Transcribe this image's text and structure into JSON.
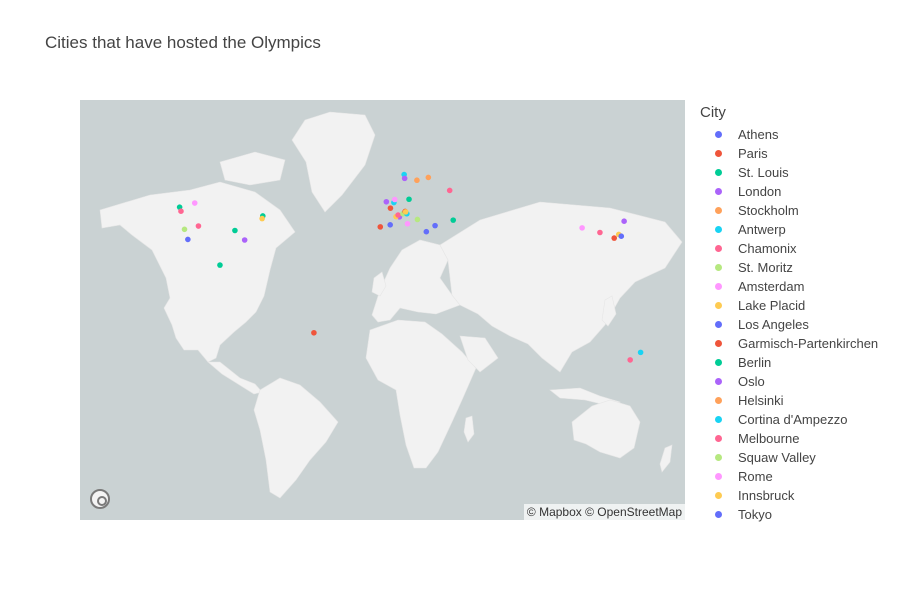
{
  "title": "Cities that have hosted the Olympics",
  "legend_title": "City",
  "attribution": "© Mapbox © OpenStreetMap",
  "map_logo_icon": "mapbox-logo-icon",
  "cities": [
    {
      "name": "Athens",
      "color": "#636efa",
      "lat": 38.0,
      "lon": 23.7
    },
    {
      "name": "Paris",
      "color": "#ef553b",
      "lat": 48.9,
      "lon": 2.35
    },
    {
      "name": "St. Louis",
      "color": "#00cc96",
      "lat": 38.6,
      "lon": -90.2
    },
    {
      "name": "London",
      "color": "#ab63fa",
      "lat": 51.5,
      "lon": -0.1
    },
    {
      "name": "Stockholm",
      "color": "#ffa15a",
      "lat": 59.3,
      "lon": 18.1
    },
    {
      "name": "Antwerp",
      "color": "#19d3f3",
      "lat": 51.2,
      "lon": 4.4
    },
    {
      "name": "Chamonix",
      "color": "#ff6692",
      "lat": 45.9,
      "lon": 6.9
    },
    {
      "name": "St. Moritz",
      "color": "#b6e880",
      "lat": 46.5,
      "lon": 9.8
    },
    {
      "name": "Amsterdam",
      "color": "#ff97ff",
      "lat": 52.4,
      "lon": 4.9
    },
    {
      "name": "Lake Placid",
      "color": "#fecb52",
      "lat": 44.3,
      "lon": -74.0
    },
    {
      "name": "Los Angeles",
      "color": "#636efa",
      "lat": 34.0,
      "lon": -118.2
    },
    {
      "name": "Garmisch-Partenkirchen",
      "color": "#ef553b",
      "lat": 47.5,
      "lon": 11.1
    },
    {
      "name": "Berlin",
      "color": "#00cc96",
      "lat": 52.5,
      "lon": 13.4
    },
    {
      "name": "Oslo",
      "color": "#ab63fa",
      "lat": 59.9,
      "lon": 10.8
    },
    {
      "name": "Helsinki",
      "color": "#ffa15a",
      "lat": 60.2,
      "lon": 24.9
    },
    {
      "name": "Cortina d'Ampezzo",
      "color": "#19d3f3",
      "lat": 46.5,
      "lon": 12.1
    },
    {
      "name": "Melbourne",
      "color": "#ff6692",
      "lat": -37.8,
      "lon": 145.0
    },
    {
      "name": "Squaw Valley",
      "color": "#b6e880",
      "lat": 39.2,
      "lon": -120.2
    },
    {
      "name": "Rome",
      "color": "#ff97ff",
      "lat": 41.9,
      "lon": 12.5
    },
    {
      "name": "Innsbruck",
      "color": "#fecb52",
      "lat": 47.3,
      "lon": 11.4
    },
    {
      "name": "Tokyo",
      "color": "#636efa",
      "lat": 35.7,
      "lon": 139.7
    }
  ],
  "extra_points": [
    {
      "color": "#ef553b",
      "lat": 40.4,
      "lon": -3.7
    },
    {
      "color": "#636efa",
      "lat": 41.4,
      "lon": 2.2
    },
    {
      "color": "#00cc96",
      "lat": 49.3,
      "lon": -123.1
    },
    {
      "color": "#00cc96",
      "lat": 19.4,
      "lon": -99.1
    },
    {
      "color": "#ef553b",
      "lat": -22.9,
      "lon": -43.2
    },
    {
      "color": "#ff6692",
      "lat": 55.8,
      "lon": 37.6
    },
    {
      "color": "#ff6692",
      "lat": 47.6,
      "lon": -122.3
    },
    {
      "color": "#ff97ff",
      "lat": 51.0,
      "lon": -114.1
    },
    {
      "color": "#ff6692",
      "lat": 40.8,
      "lon": -111.9
    },
    {
      "color": "#ab63fa",
      "lat": 33.7,
      "lon": -84.4
    },
    {
      "color": "#19d3f3",
      "lat": -33.9,
      "lon": 151.2
    },
    {
      "color": "#ab63fa",
      "lat": 43.1,
      "lon": 141.4
    },
    {
      "color": "#ff6692",
      "lat": 37.6,
      "lon": 127.0
    },
    {
      "color": "#ff97ff",
      "lat": 39.9,
      "lon": 116.4
    },
    {
      "color": "#fecb52",
      "lat": 36.6,
      "lon": 138.2
    },
    {
      "color": "#ef553b",
      "lat": 34.7,
      "lon": 135.5
    },
    {
      "color": "#ab63fa",
      "lat": 45.1,
      "lon": 7.7
    },
    {
      "color": "#636efa",
      "lat": 41.0,
      "lon": 28.9
    },
    {
      "color": "#fecb52",
      "lat": 45.2,
      "lon": 5.7
    },
    {
      "color": "#b6e880",
      "lat": 43.9,
      "lon": 18.4
    },
    {
      "color": "#00cc96",
      "lat": 45.5,
      "lon": -73.6
    },
    {
      "color": "#19d3f3",
      "lat": 61.1,
      "lon": 10.5
    },
    {
      "color": "#00cc96",
      "lat": 43.6,
      "lon": 39.7
    }
  ]
}
